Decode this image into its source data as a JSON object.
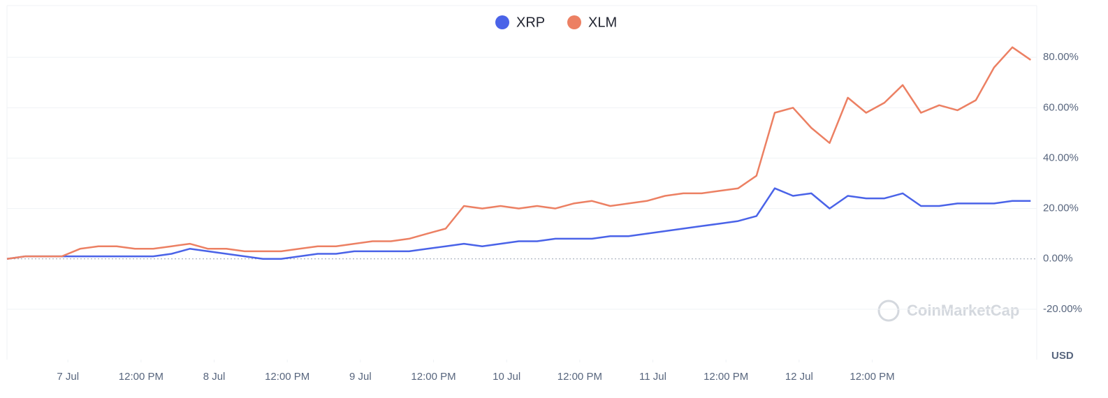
{
  "chart_data": {
    "type": "line",
    "x": [
      -10,
      -7,
      -4,
      -1,
      2,
      5,
      8,
      11,
      14,
      17,
      20,
      23,
      26,
      29,
      32,
      35,
      38,
      41,
      44,
      47,
      50,
      53,
      56,
      59,
      62,
      65,
      68,
      71,
      74,
      77,
      80,
      83,
      86,
      89,
      92,
      95,
      98,
      101,
      104,
      107,
      110,
      113,
      116,
      119,
      122,
      125,
      128,
      131,
      134,
      137,
      140,
      143,
      146,
      149,
      152,
      155,
      158
    ],
    "series": [
      {
        "name": "XRP",
        "color": "#4a63e8",
        "values": [
          0,
          1,
          1,
          1,
          1,
          1,
          1,
          1,
          1,
          2,
          4,
          3,
          2,
          1,
          0,
          0,
          1,
          2,
          2,
          3,
          3,
          3,
          3,
          4,
          5,
          6,
          5,
          6,
          7,
          7,
          8,
          8,
          8,
          9,
          9,
          10,
          11,
          12,
          13,
          14,
          15,
          17,
          28,
          25,
          26,
          20,
          25,
          24,
          24,
          26,
          21,
          21,
          22,
          22,
          22,
          23,
          23
        ]
      },
      {
        "name": "XLM",
        "color": "#ec8063",
        "values": [
          0,
          1,
          1,
          1,
          4,
          5,
          5,
          4,
          4,
          5,
          6,
          4,
          4,
          3,
          3,
          3,
          4,
          5,
          5,
          6,
          7,
          7,
          8,
          10,
          12,
          21,
          20,
          21,
          20,
          21,
          20,
          22,
          23,
          21,
          22,
          23,
          25,
          26,
          26,
          27,
          28,
          33,
          58,
          60,
          52,
          46,
          64,
          58,
          62,
          69,
          58,
          61,
          59,
          63,
          76,
          84,
          79
        ]
      }
    ],
    "xlim": [
      -10,
      159
    ],
    "xticks": [
      {
        "value": 0,
        "label": "7 Jul"
      },
      {
        "value": 12,
        "label": "12:00 PM"
      },
      {
        "value": 24,
        "label": "8 Jul"
      },
      {
        "value": 36,
        "label": "12:00 PM"
      },
      {
        "value": 48,
        "label": "9 Jul"
      },
      {
        "value": 60,
        "label": "12:00 PM"
      },
      {
        "value": 72,
        "label": "10 Jul"
      },
      {
        "value": 84,
        "label": "12:00 PM"
      },
      {
        "value": 96,
        "label": "11 Jul"
      },
      {
        "value": 108,
        "label": "12:00 PM"
      },
      {
        "value": 120,
        "label": "12 Jul"
      },
      {
        "value": 132,
        "label": "12:00 PM"
      }
    ],
    "ylim": [
      -40,
      100
    ],
    "yticks": [
      {
        "value": -20,
        "label": "-20.00%"
      },
      {
        "value": 0,
        "label": "0.00%"
      },
      {
        "value": 20,
        "label": "20.00%"
      },
      {
        "value": 40,
        "label": "40.00%"
      },
      {
        "value": 60,
        "label": "60.00%"
      },
      {
        "value": 80,
        "label": "80.00%"
      }
    ],
    "grid": true,
    "legend": "top",
    "watermark": "CoinMarketCap",
    "currency": "USD"
  }
}
